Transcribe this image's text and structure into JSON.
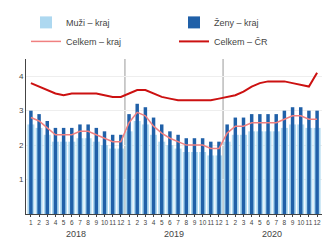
{
  "chart_data": {
    "type": "bar",
    "categories": [
      "1",
      "2",
      "3",
      "4",
      "5",
      "6",
      "7",
      "8",
      "9",
      "10",
      "11",
      "12",
      "1",
      "2",
      "3",
      "4",
      "5",
      "6",
      "7",
      "8",
      "9",
      "10",
      "11",
      "12",
      "1",
      "2",
      "3",
      "4",
      "5",
      "6",
      "7",
      "8",
      "9",
      "10",
      "11",
      "12"
    ],
    "annotations": [
      "2018",
      "2019",
      "2020"
    ],
    "series": [
      {
        "name": "Muži – kraj",
        "type": "bar",
        "color": "#add8f0",
        "values": [
          2.6,
          2.5,
          2.3,
          2.1,
          2.1,
          2.1,
          2.2,
          2.2,
          2.1,
          2.0,
          1.9,
          1.9,
          2.4,
          2.7,
          2.6,
          2.3,
          2.1,
          2.0,
          1.9,
          1.8,
          1.8,
          1.8,
          1.7,
          1.7,
          2.1,
          2.3,
          2.3,
          2.4,
          2.4,
          2.4,
          2.4,
          2.5,
          2.6,
          2.6,
          2.5,
          2.5
        ]
      },
      {
        "name": "Ženy – kraj",
        "type": "bar",
        "color": "#2060a8",
        "values": [
          3.0,
          2.9,
          2.7,
          2.5,
          2.5,
          2.5,
          2.6,
          2.6,
          2.5,
          2.4,
          2.3,
          2.3,
          2.9,
          3.2,
          3.1,
          2.8,
          2.6,
          2.4,
          2.3,
          2.2,
          2.2,
          2.2,
          2.1,
          2.1,
          2.6,
          2.8,
          2.8,
          2.9,
          2.9,
          2.9,
          2.9,
          3.0,
          3.1,
          3.1,
          3.0,
          3.0
        ]
      },
      {
        "name": "Celkem – kraj",
        "type": "line",
        "color": "#f08080",
        "values": [
          2.8,
          2.7,
          2.5,
          2.3,
          2.3,
          2.3,
          2.4,
          2.4,
          2.3,
          2.2,
          2.1,
          2.1,
          2.65,
          2.95,
          2.85,
          2.55,
          2.35,
          2.2,
          2.1,
          2.0,
          2.0,
          2.0,
          1.9,
          1.9,
          2.35,
          2.55,
          2.55,
          2.65,
          2.65,
          2.65,
          2.65,
          2.75,
          2.85,
          2.85,
          2.75,
          2.75
        ]
      },
      {
        "name": "Celkem – ČR",
        "type": "line",
        "color": "#cc1111",
        "values": [
          3.8,
          3.7,
          3.6,
          3.5,
          3.45,
          3.5,
          3.5,
          3.5,
          3.5,
          3.45,
          3.4,
          3.4,
          3.5,
          3.6,
          3.6,
          3.5,
          3.4,
          3.35,
          3.3,
          3.3,
          3.3,
          3.3,
          3.3,
          3.35,
          3.4,
          3.45,
          3.55,
          3.7,
          3.8,
          3.85,
          3.85,
          3.85,
          3.8,
          3.75,
          3.7,
          4.1
        ]
      }
    ],
    "ylim": [
      0,
      4.5
    ],
    "yticks": [
      1,
      2,
      3,
      4
    ],
    "grid": true,
    "legend": "upper left"
  }
}
